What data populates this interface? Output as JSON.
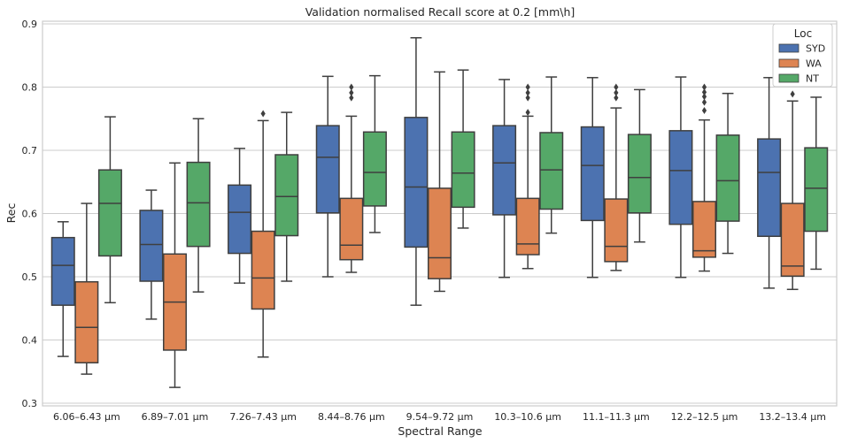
{
  "chart_data": {
    "type": "box",
    "title": "Validation normalised Recall score at 0.2 [mm\\h]",
    "xlabel": "Spectral Range",
    "ylabel": "Rec",
    "ylim": [
      0.3,
      0.9
    ],
    "yticks": [
      0.3,
      0.4,
      0.5,
      0.6,
      0.7,
      0.8,
      0.9
    ],
    "grid": true,
    "legend": {
      "title": "Loc",
      "position": "top-right"
    },
    "categories": [
      "6.06–6.43 μm",
      "6.89–7.01 μm",
      "7.26–7.43 μm",
      "8.44–8.76 μm",
      "9.54–9.72 μm",
      "10.3–10.6 μm",
      "11.1–11.3 μm",
      "12.2–12.5 μm",
      "13.2–13.4 μm"
    ],
    "series": [
      {
        "name": "SYD",
        "color": "#4c72b0",
        "boxes": [
          {
            "whislo": 0.374,
            "q1": 0.455,
            "med": 0.518,
            "q3": 0.562,
            "whishi": 0.587,
            "fliers": []
          },
          {
            "whislo": 0.433,
            "q1": 0.493,
            "med": 0.551,
            "q3": 0.605,
            "whishi": 0.637,
            "fliers": []
          },
          {
            "whislo": 0.49,
            "q1": 0.537,
            "med": 0.602,
            "q3": 0.645,
            "whishi": 0.703,
            "fliers": []
          },
          {
            "whislo": 0.5,
            "q1": 0.601,
            "med": 0.689,
            "q3": 0.739,
            "whishi": 0.817,
            "fliers": []
          },
          {
            "whislo": 0.455,
            "q1": 0.547,
            "med": 0.642,
            "q3": 0.752,
            "whishi": 0.878,
            "fliers": []
          },
          {
            "whislo": 0.499,
            "q1": 0.598,
            "med": 0.68,
            "q3": 0.739,
            "whishi": 0.812,
            "fliers": []
          },
          {
            "whislo": 0.499,
            "q1": 0.589,
            "med": 0.676,
            "q3": 0.737,
            "whishi": 0.815,
            "fliers": []
          },
          {
            "whislo": 0.499,
            "q1": 0.583,
            "med": 0.668,
            "q3": 0.731,
            "whishi": 0.816,
            "fliers": []
          },
          {
            "whislo": 0.482,
            "q1": 0.564,
            "med": 0.665,
            "q3": 0.718,
            "whishi": 0.815,
            "fliers": []
          }
        ]
      },
      {
        "name": "WA",
        "color": "#dd8452",
        "boxes": [
          {
            "whislo": 0.346,
            "q1": 0.364,
            "med": 0.42,
            "q3": 0.492,
            "whishi": 0.616,
            "fliers": []
          },
          {
            "whislo": 0.325,
            "q1": 0.384,
            "med": 0.46,
            "q3": 0.536,
            "whishi": 0.68,
            "fliers": []
          },
          {
            "whislo": 0.373,
            "q1": 0.449,
            "med": 0.498,
            "q3": 0.572,
            "whishi": 0.747,
            "fliers": [
              0.758
            ]
          },
          {
            "whislo": 0.507,
            "q1": 0.527,
            "med": 0.55,
            "q3": 0.624,
            "whishi": 0.754,
            "fliers": [
              0.783,
              0.791,
              0.8
            ]
          },
          {
            "whislo": 0.477,
            "q1": 0.497,
            "med": 0.53,
            "q3": 0.64,
            "whishi": 0.824,
            "fliers": []
          },
          {
            "whislo": 0.513,
            "q1": 0.535,
            "med": 0.552,
            "q3": 0.624,
            "whishi": 0.754,
            "fliers": [
              0.76,
              0.783,
              0.791,
              0.8
            ]
          },
          {
            "whislo": 0.51,
            "q1": 0.524,
            "med": 0.548,
            "q3": 0.623,
            "whishi": 0.767,
            "fliers": [
              0.783,
              0.791,
              0.8
            ]
          },
          {
            "whislo": 0.509,
            "q1": 0.531,
            "med": 0.541,
            "q3": 0.619,
            "whishi": 0.748,
            "fliers": [
              0.763,
              0.776,
              0.785,
              0.792,
              0.8
            ]
          },
          {
            "whislo": 0.48,
            "q1": 0.501,
            "med": 0.517,
            "q3": 0.616,
            "whishi": 0.778,
            "fliers": [
              0.789,
              0.806
            ]
          }
        ]
      },
      {
        "name": "NT",
        "color": "#55a868",
        "boxes": [
          {
            "whislo": 0.459,
            "q1": 0.533,
            "med": 0.616,
            "q3": 0.669,
            "whishi": 0.753,
            "fliers": []
          },
          {
            "whislo": 0.476,
            "q1": 0.548,
            "med": 0.617,
            "q3": 0.681,
            "whishi": 0.75,
            "fliers": []
          },
          {
            "whislo": 0.493,
            "q1": 0.565,
            "med": 0.627,
            "q3": 0.693,
            "whishi": 0.76,
            "fliers": []
          },
          {
            "whislo": 0.57,
            "q1": 0.612,
            "med": 0.665,
            "q3": 0.729,
            "whishi": 0.818,
            "fliers": []
          },
          {
            "whislo": 0.577,
            "q1": 0.61,
            "med": 0.664,
            "q3": 0.729,
            "whishi": 0.827,
            "fliers": []
          },
          {
            "whislo": 0.569,
            "q1": 0.607,
            "med": 0.669,
            "q3": 0.728,
            "whishi": 0.816,
            "fliers": []
          },
          {
            "whislo": 0.555,
            "q1": 0.601,
            "med": 0.657,
            "q3": 0.725,
            "whishi": 0.796,
            "fliers": []
          },
          {
            "whislo": 0.537,
            "q1": 0.588,
            "med": 0.652,
            "q3": 0.724,
            "whishi": 0.79,
            "fliers": []
          },
          {
            "whislo": 0.512,
            "q1": 0.572,
            "med": 0.64,
            "q3": 0.704,
            "whishi": 0.784,
            "fliers": []
          }
        ]
      }
    ]
  }
}
